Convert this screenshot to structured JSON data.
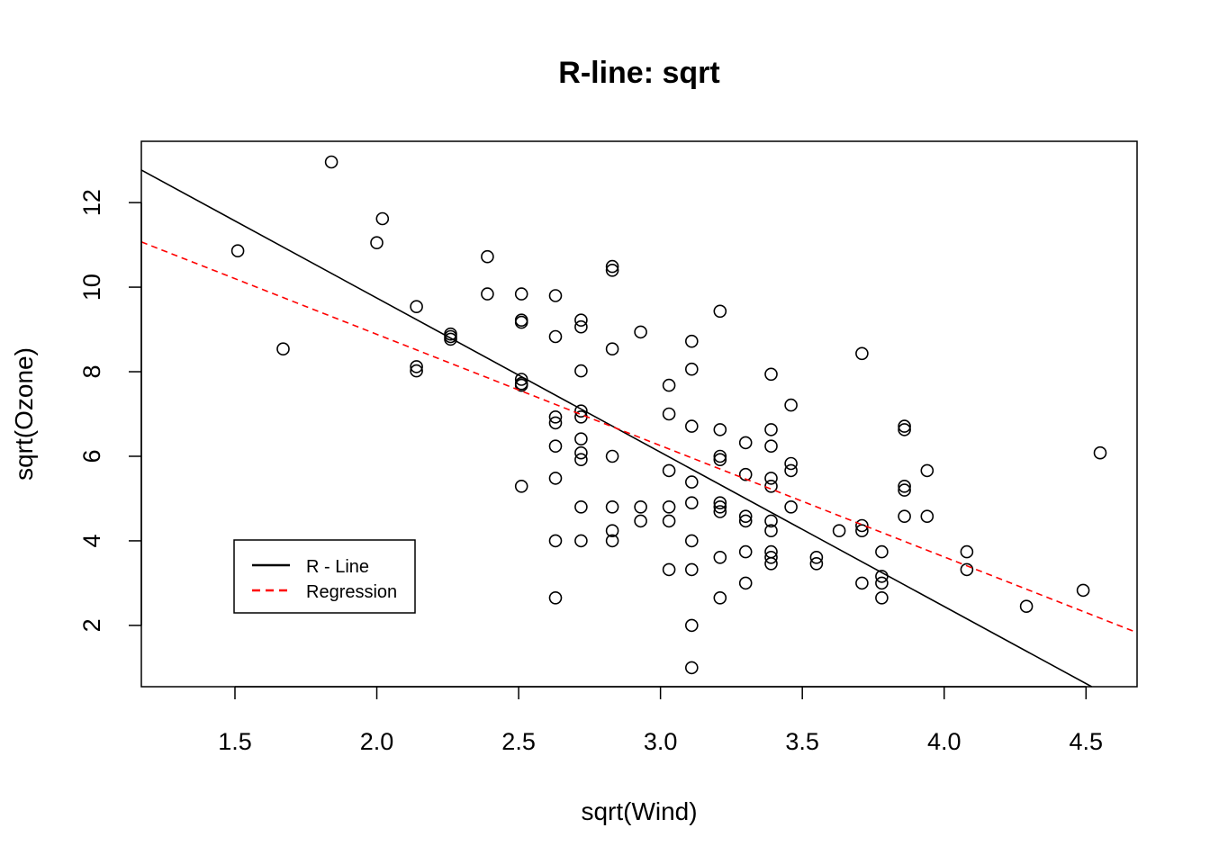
{
  "chart_data": {
    "type": "scatter",
    "title": "R-line: sqrt",
    "xlabel": "sqrt(Wind)",
    "ylabel": "sqrt(Ozone)",
    "xlim": [
      1.17,
      4.68
    ],
    "ylim": [
      0.55,
      13.45
    ],
    "xticks": [
      "1.5",
      "2.0",
      "2.5",
      "3.0",
      "3.5",
      "4.0",
      "4.5"
    ],
    "yticks": [
      "2",
      "4",
      "6",
      "8",
      "10",
      "12"
    ],
    "grid": false,
    "legend": {
      "position": "bottom-left",
      "entries": [
        {
          "label": "R - Line",
          "color": "#000000",
          "style": "solid"
        },
        {
          "label": "Regression",
          "color": "#ff0000",
          "style": "dashed"
        }
      ]
    },
    "lines": [
      {
        "name": "R - Line",
        "color": "#000000",
        "dash": false,
        "points": [
          [
            1.17,
            12.77
          ],
          [
            4.52,
            0.55
          ]
        ]
      },
      {
        "name": "Regression",
        "color": "#ff0000",
        "dash": true,
        "points": [
          [
            1.17,
            11.07
          ],
          [
            4.68,
            1.83
          ]
        ]
      }
    ],
    "points": [
      [
        1.51,
        10.86
      ],
      [
        1.67,
        8.54
      ],
      [
        1.84,
        12.96
      ],
      [
        2.0,
        11.05
      ],
      [
        2.02,
        11.62
      ],
      [
        2.14,
        9.54
      ],
      [
        2.14,
        8.12
      ],
      [
        2.14,
        8.02
      ],
      [
        2.26,
        8.89
      ],
      [
        2.26,
        8.83
      ],
      [
        2.26,
        8.77
      ],
      [
        2.39,
        10.72
      ],
      [
        2.39,
        9.84
      ],
      [
        2.51,
        9.84
      ],
      [
        2.51,
        9.22
      ],
      [
        2.51,
        9.17
      ],
      [
        2.51,
        7.82
      ],
      [
        2.51,
        7.72
      ],
      [
        2.51,
        7.68
      ],
      [
        2.51,
        5.29
      ],
      [
        2.63,
        9.8
      ],
      [
        2.63,
        8.83
      ],
      [
        2.63,
        6.93
      ],
      [
        2.63,
        6.79
      ],
      [
        2.63,
        6.24
      ],
      [
        2.63,
        5.48
      ],
      [
        2.63,
        4.0
      ],
      [
        2.63,
        2.65
      ],
      [
        2.72,
        9.22
      ],
      [
        2.72,
        9.06
      ],
      [
        2.72,
        8.02
      ],
      [
        2.72,
        7.07
      ],
      [
        2.72,
        6.93
      ],
      [
        2.72,
        6.41
      ],
      [
        2.72,
        6.08
      ],
      [
        2.72,
        5.92
      ],
      [
        2.72,
        4.8
      ],
      [
        2.72,
        4.0
      ],
      [
        2.83,
        10.49
      ],
      [
        2.83,
        10.4
      ],
      [
        2.83,
        8.54
      ],
      [
        2.83,
        6.0
      ],
      [
        2.83,
        4.8
      ],
      [
        2.83,
        4.24
      ],
      [
        2.83,
        4.0
      ],
      [
        2.93,
        8.94
      ],
      [
        2.93,
        4.8
      ],
      [
        2.93,
        4.47
      ],
      [
        3.03,
        7.68
      ],
      [
        3.03,
        7.0
      ],
      [
        3.03,
        5.66
      ],
      [
        3.03,
        4.8
      ],
      [
        3.03,
        4.47
      ],
      [
        3.03,
        3.32
      ],
      [
        3.11,
        8.72
      ],
      [
        3.11,
        8.06
      ],
      [
        3.11,
        6.71
      ],
      [
        3.11,
        5.39
      ],
      [
        3.11,
        4.9
      ],
      [
        3.11,
        4.0
      ],
      [
        3.11,
        3.32
      ],
      [
        3.11,
        2.0
      ],
      [
        3.11,
        1.0
      ],
      [
        3.21,
        9.43
      ],
      [
        3.21,
        6.63
      ],
      [
        3.21,
        6.0
      ],
      [
        3.21,
        5.92
      ],
      [
        3.21,
        4.9
      ],
      [
        3.21,
        4.8
      ],
      [
        3.21,
        4.69
      ],
      [
        3.21,
        3.61
      ],
      [
        3.21,
        2.65
      ],
      [
        3.3,
        6.32
      ],
      [
        3.3,
        5.57
      ],
      [
        3.3,
        4.58
      ],
      [
        3.3,
        4.47
      ],
      [
        3.3,
        3.74
      ],
      [
        3.3,
        3.0
      ],
      [
        3.39,
        7.94
      ],
      [
        3.39,
        6.63
      ],
      [
        3.39,
        6.24
      ],
      [
        3.39,
        5.48
      ],
      [
        3.39,
        5.29
      ],
      [
        3.39,
        4.47
      ],
      [
        3.39,
        4.24
      ],
      [
        3.39,
        3.74
      ],
      [
        3.39,
        3.61
      ],
      [
        3.39,
        3.46
      ],
      [
        3.46,
        7.21
      ],
      [
        3.46,
        5.83
      ],
      [
        3.46,
        5.66
      ],
      [
        3.46,
        4.8
      ],
      [
        3.55,
        3.61
      ],
      [
        3.55,
        3.46
      ],
      [
        3.63,
        4.24
      ],
      [
        3.71,
        8.43
      ],
      [
        3.71,
        4.36
      ],
      [
        3.71,
        4.24
      ],
      [
        3.71,
        3.0
      ],
      [
        3.78,
        3.74
      ],
      [
        3.78,
        3.16
      ],
      [
        3.78,
        3.0
      ],
      [
        3.78,
        2.65
      ],
      [
        3.86,
        6.71
      ],
      [
        3.86,
        6.63
      ],
      [
        3.86,
        5.29
      ],
      [
        3.86,
        5.2
      ],
      [
        3.86,
        4.58
      ],
      [
        3.94,
        5.66
      ],
      [
        3.94,
        4.58
      ],
      [
        4.08,
        3.74
      ],
      [
        4.08,
        3.32
      ],
      [
        4.29,
        2.45
      ],
      [
        4.49,
        2.83
      ],
      [
        4.55,
        6.08
      ]
    ]
  }
}
